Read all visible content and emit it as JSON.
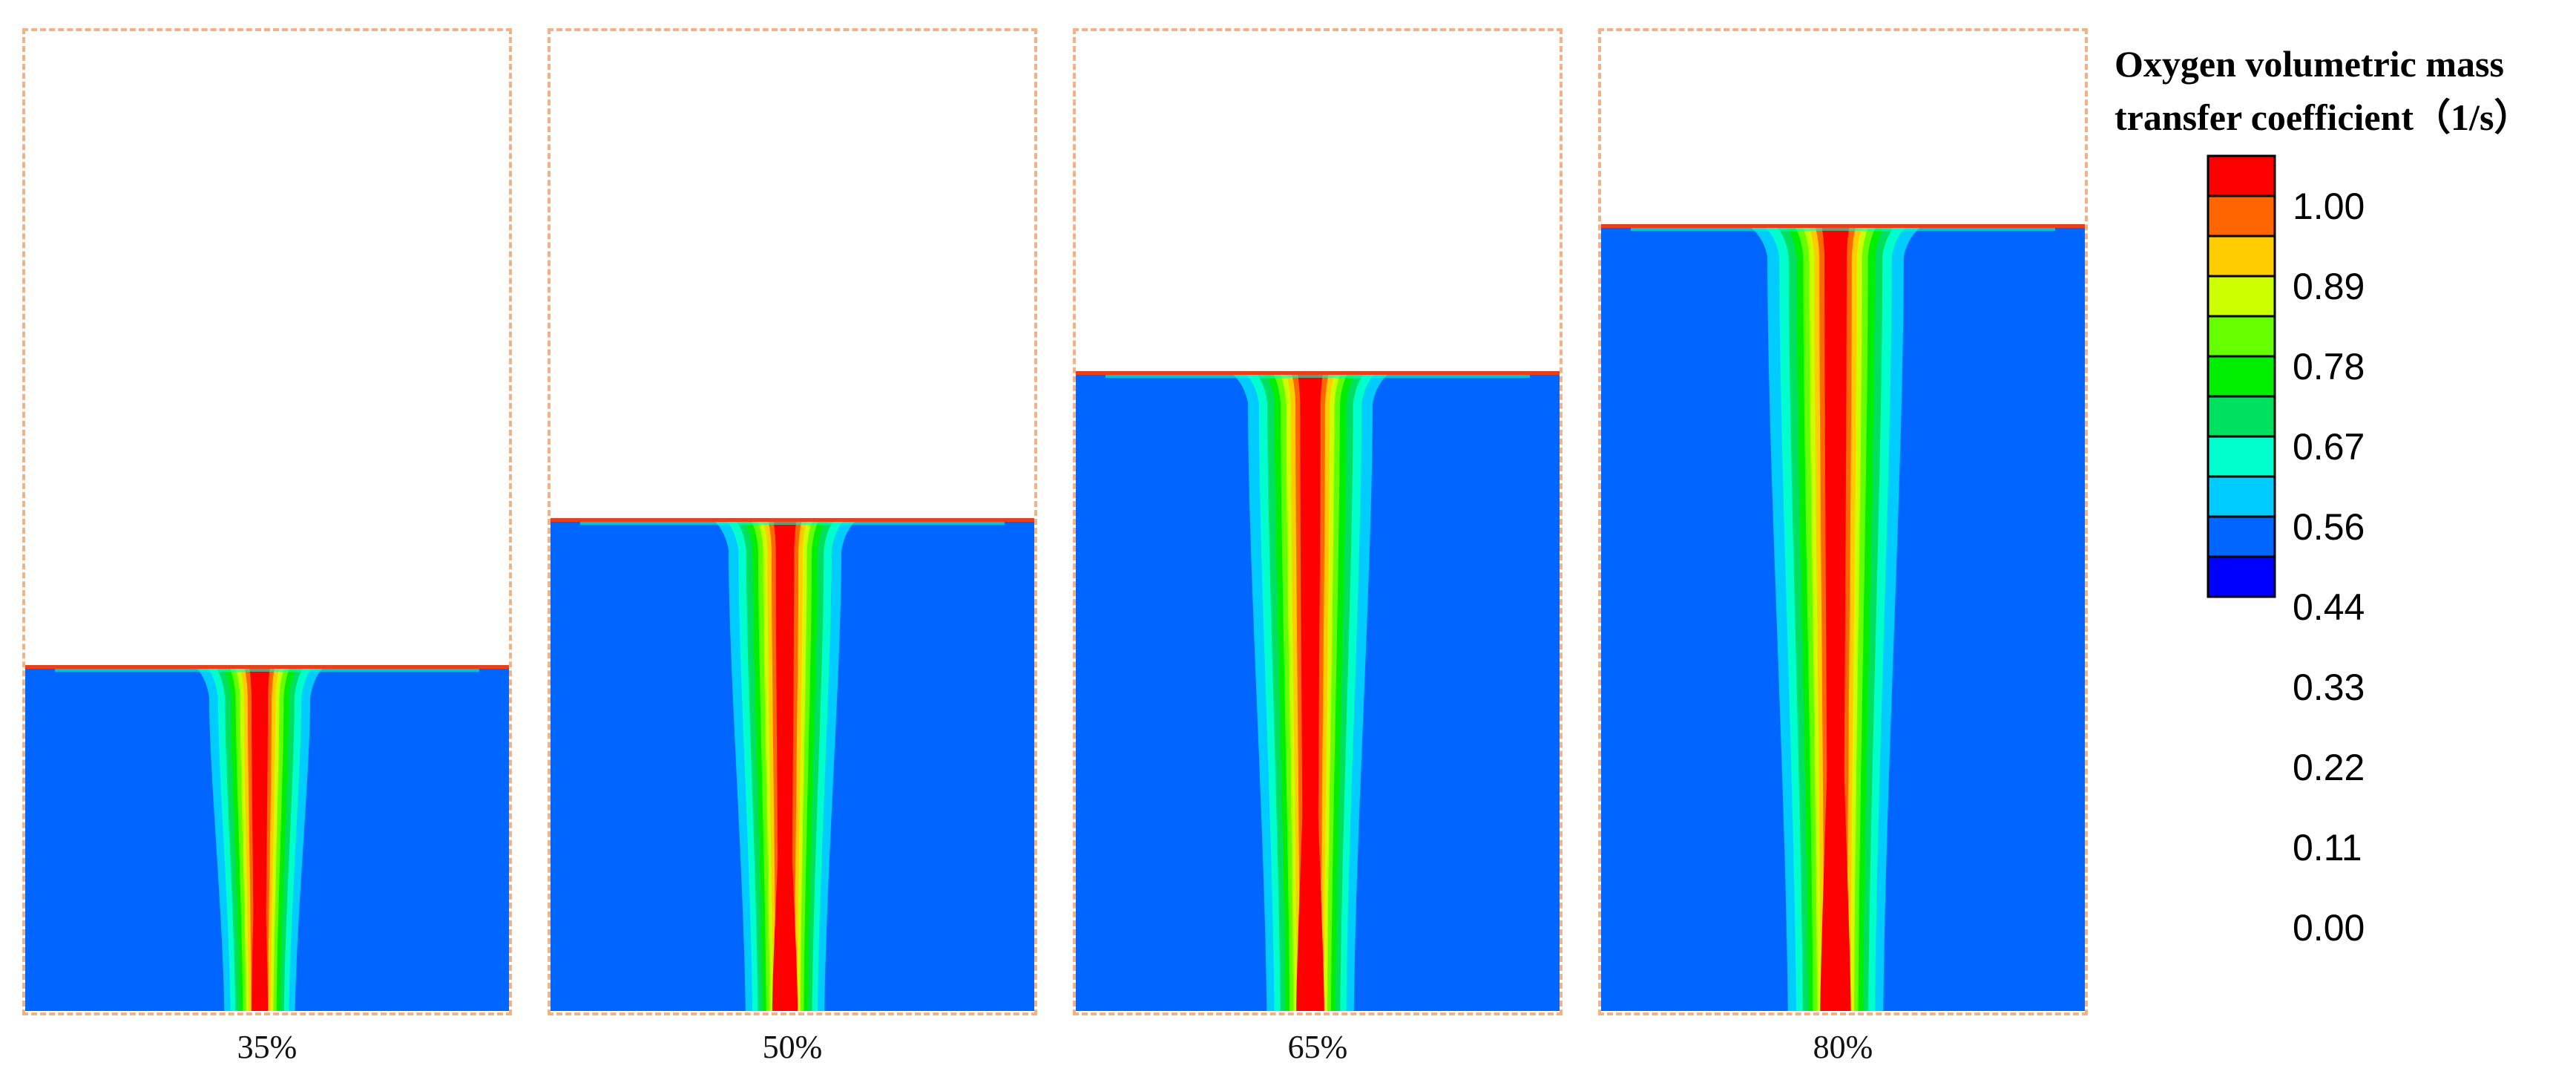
{
  "legend": {
    "title_line1": "Oxygen volumetric mass",
    "title_line2": "transfer coefficient（1/s）",
    "ticks": [
      "1.00",
      "0.89",
      "0.78",
      "0.67",
      "0.56",
      "0.44",
      "0.33",
      "0.22",
      "0.11",
      "0.00"
    ],
    "colors": [
      "#ff0000",
      "#ff6600",
      "#ffcc00",
      "#ccff00",
      "#66ff00",
      "#00ee00",
      "#00e060",
      "#00ffcc",
      "#00ccff",
      "#0066ff",
      "#0000ff"
    ]
  },
  "panels": [
    {
      "label": "35%",
      "liquid_level": 0.35
    },
    {
      "label": "50%",
      "liquid_level": 0.5
    },
    {
      "label": "65%",
      "liquid_level": 0.65
    },
    {
      "label": "80%",
      "liquid_level": 0.8
    }
  ],
  "colors": {
    "background_liquid": "#0066ff",
    "frame": "#f4b183",
    "surface_line": "#e8401a"
  }
}
